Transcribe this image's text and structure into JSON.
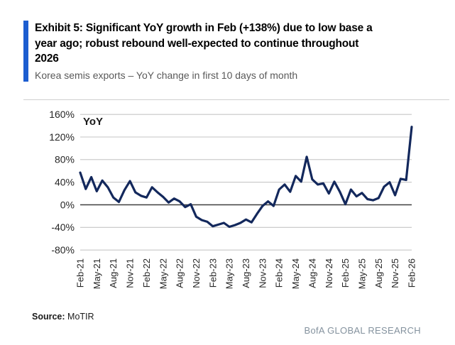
{
  "header": {
    "title_lines": [
      "Exhibit 5: Significant YoY growth in Feb (+138%) due to low base a",
      "year ago; robust rebound well-expected to continue throughout",
      "2026"
    ],
    "subtitle": "Korea semis exports – YoY change in first 10 days of month",
    "accent_color": "#1c5dd0"
  },
  "chart_data": {
    "type": "line",
    "series_label": "YoY",
    "categories": [
      "Feb-21",
      "Mar-21",
      "Apr-21",
      "May-21",
      "Jun-21",
      "Jul-21",
      "Aug-21",
      "Sep-21",
      "Oct-21",
      "Nov-21",
      "Dec-21",
      "Jan-22",
      "Feb-22",
      "Mar-22",
      "Apr-22",
      "May-22",
      "Jun-22",
      "Jul-22",
      "Aug-22",
      "Sep-22",
      "Oct-22",
      "Nov-22",
      "Dec-22",
      "Jan-23",
      "Feb-23",
      "Mar-23",
      "Apr-23",
      "May-23",
      "Jun-23",
      "Jul-23",
      "Aug-23",
      "Sep-23",
      "Oct-23",
      "Nov-23",
      "Dec-23",
      "Jan-24",
      "Feb-24",
      "Mar-24",
      "Apr-24",
      "May-24",
      "Jun-24",
      "Jul-24",
      "Aug-24",
      "Sep-24",
      "Oct-24",
      "Nov-24",
      "Dec-24",
      "Jan-25",
      "Feb-25",
      "Mar-25",
      "Apr-25",
      "May-25",
      "Jun-25",
      "Jul-25",
      "Aug-25",
      "Sep-25",
      "Oct-25",
      "Nov-25",
      "Dec-25",
      "Jan-26",
      "Feb-26"
    ],
    "values": [
      57,
      28,
      49,
      24,
      43,
      31,
      13,
      5,
      26,
      42,
      22,
      16,
      13,
      31,
      22,
      14,
      4,
      11,
      6,
      -4,
      1,
      -21,
      -27,
      -30,
      -38,
      -35,
      -32,
      -39,
      -36,
      -32,
      -26,
      -31,
      -16,
      -2,
      6,
      -2,
      27,
      36,
      23,
      51,
      41,
      85,
      45,
      36,
      38,
      20,
      41,
      23,
      1,
      27,
      15,
      21,
      10,
      8,
      12,
      32,
      40,
      17,
      46,
      44,
      138
    ],
    "xlabel": "",
    "ylabel": "",
    "ylim": [
      -80,
      160
    ],
    "grid": true,
    "legend_position": "none",
    "y_ticks": [
      {
        "label": "160%",
        "value": 160
      },
      {
        "label": "120%",
        "value": 120
      },
      {
        "label": "80%",
        "value": 80
      },
      {
        "label": "40%",
        "value": 40
      },
      {
        "label": "0%",
        "value": 0
      },
      {
        "label": "-40%",
        "value": -40
      },
      {
        "label": "-80%",
        "value": -80
      }
    ],
    "x_tick_every": 3,
    "x_tick_labels": [
      "Feb-21",
      "May-21",
      "Aug-21",
      "Nov-21",
      "Feb-22",
      "May-22",
      "Aug-22",
      "Nov-22",
      "Feb-23",
      "May-23",
      "Aug-23",
      "Nov-23",
      "Feb-24",
      "May-24",
      "Aug-24",
      "Nov-24",
      "Feb-25",
      "May-25",
      "Aug-25",
      "Nov-25",
      "Feb-26"
    ],
    "line_color": "#13285c",
    "gridline_color": "#c6c6c6",
    "zero_line_color": "#3f3f3f"
  },
  "footer": {
    "source_label": "Source:",
    "source_value": "MoTIR",
    "brand": "BofA GLOBAL RESEARCH"
  }
}
